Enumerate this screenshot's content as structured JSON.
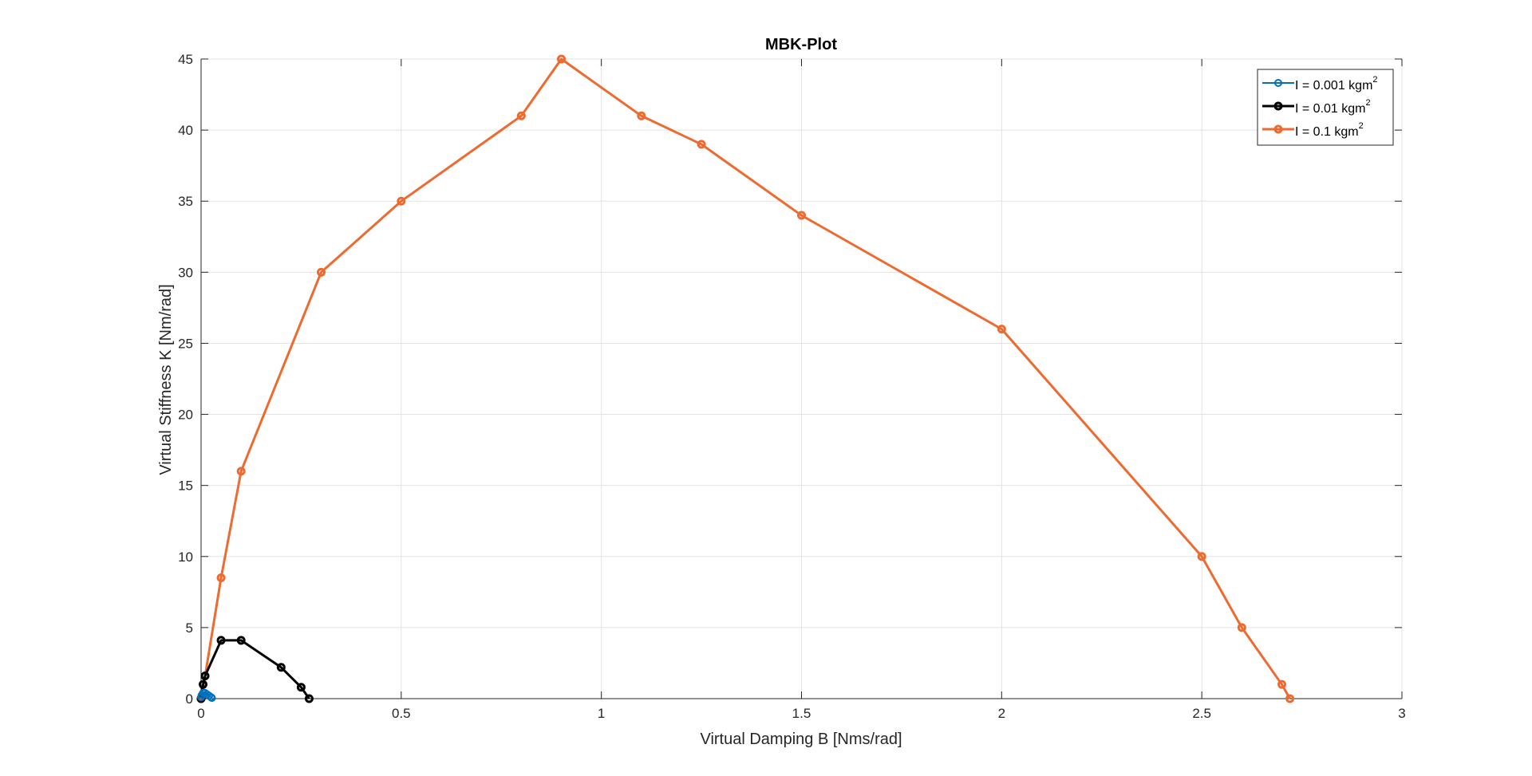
{
  "chart_data": {
    "type": "line",
    "title": "MBK-Plot",
    "xlabel": "Virtual Damping B [Nms/rad]",
    "ylabel": "Virtual Stiffness K [Nm/rad]",
    "xlim": [
      0,
      3
    ],
    "ylim": [
      0,
      45
    ],
    "xticks": [
      0,
      0.5,
      1,
      1.5,
      2,
      2.5,
      3
    ],
    "xtick_labels": [
      "0",
      "0.5",
      "1",
      "1.5",
      "2",
      "2.5",
      "3"
    ],
    "yticks": [
      0,
      5,
      10,
      15,
      20,
      25,
      30,
      35,
      40,
      45
    ],
    "ytick_labels": [
      "0",
      "5",
      "10",
      "15",
      "20",
      "25",
      "30",
      "35",
      "40",
      "45"
    ],
    "grid": true,
    "legend_position": "top-right",
    "series": [
      {
        "name": "I = 0.001 kgm",
        "name_sup": "2",
        "color": "#0072BD",
        "line_width": 1,
        "marker": "circle",
        "x": [
          0,
          0.002,
          0.005,
          0.01,
          0.015,
          0.02,
          0.025,
          0.027
        ],
        "y": [
          0.1,
          0.25,
          0.4,
          0.4,
          0.3,
          0.2,
          0.1,
          0.05
        ]
      },
      {
        "name": "I = 0.01 kgm",
        "name_sup": "2",
        "color": "#000000",
        "line_width": 2,
        "marker": "circle",
        "x": [
          0,
          0.005,
          0.01,
          0.05,
          0.1,
          0.2,
          0.25,
          0.27
        ],
        "y": [
          0,
          1.0,
          1.6,
          4.1,
          4.1,
          2.2,
          0.8,
          0
        ]
      },
      {
        "name": "I = 0.1 kgm",
        "name_sup": "2",
        "color": "#EE6A2F",
        "line_width": 2,
        "marker": "circle",
        "x": [
          0,
          0.002,
          0.05,
          0.1,
          0.3,
          0.5,
          0.8,
          0.9,
          1.1,
          1.25,
          1.5,
          2.0,
          2.5,
          2.6,
          2.7,
          2.72
        ],
        "y": [
          0,
          0.2,
          8.5,
          16,
          30,
          35,
          41,
          45,
          41,
          39,
          34,
          26,
          10,
          5,
          1,
          0
        ]
      }
    ]
  }
}
